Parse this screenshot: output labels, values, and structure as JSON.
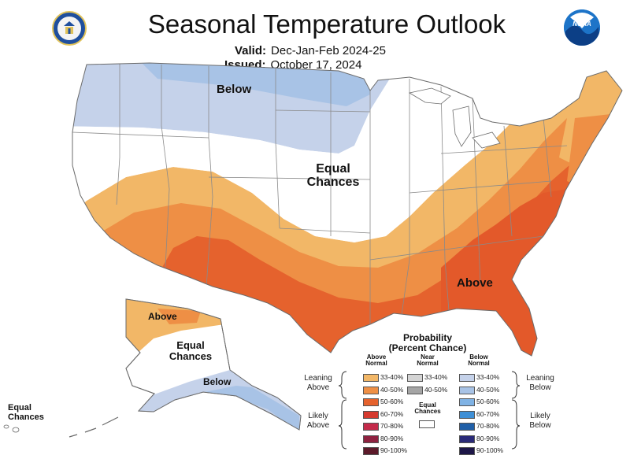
{
  "header": {
    "title": "Seasonal Temperature Outlook",
    "valid_label": "Valid:",
    "valid_value": "Dec-Jan-Feb 2024-25",
    "issued_label": "Issued:",
    "issued_value": "October 17, 2024"
  },
  "logos": {
    "left": "department-of-commerce-seal",
    "right_text": "NOAA"
  },
  "map_labels": {
    "below_north": "Below",
    "equal_center_line1": "Equal",
    "equal_center_line2": "Chances",
    "above_southeast": "Above",
    "alaska_above": "Above",
    "alaska_equal_line1": "Equal",
    "alaska_equal_line2": "Chances",
    "alaska_below": "Below",
    "hawaii_equal_line1": "Equal",
    "hawaii_equal_line2": "Chances"
  },
  "legend": {
    "title_line1": "Probability",
    "title_line2": "(Percent Chance)",
    "above_header_line1": "Above",
    "above_header_line2": "Normal",
    "near_header_line1": "Near",
    "near_header_line2": "Normal",
    "below_header_line1": "Below",
    "below_header_line2": "Normal",
    "above_rows": [
      {
        "range": "33-40%",
        "color": "#f2b767"
      },
      {
        "range": "40-50%",
        "color": "#ee8f45"
      },
      {
        "range": "50-60%",
        "color": "#e5622d"
      },
      {
        "range": "60-70%",
        "color": "#d63a2f"
      },
      {
        "range": "70-80%",
        "color": "#c42a4a"
      },
      {
        "range": "80-90%",
        "color": "#8e2240"
      },
      {
        "range": "90-100%",
        "color": "#5c1a2a"
      }
    ],
    "near_rows": [
      {
        "range": "33-40%",
        "color": "#d4d4d4"
      },
      {
        "range": "40-50%",
        "color": "#a5a5a5"
      }
    ],
    "below_rows": [
      {
        "range": "33-40%",
        "color": "#c5d2ea"
      },
      {
        "range": "40-50%",
        "color": "#a8c3e6"
      },
      {
        "range": "50-60%",
        "color": "#7fb2e4"
      },
      {
        "range": "60-70%",
        "color": "#3d8fd6"
      },
      {
        "range": "70-80%",
        "color": "#1f5fa8"
      },
      {
        "range": "80-90%",
        "color": "#2a2a78"
      },
      {
        "range": "90-100%",
        "color": "#1d1648"
      }
    ],
    "equal_chances_line1": "Equal",
    "equal_chances_line2": "Chances",
    "equal_chances_color": "#ffffff",
    "leaning_above_line1": "Leaning",
    "leaning_above_line2": "Above",
    "likely_above_line1": "Likely",
    "likely_above_line2": "Above",
    "leaning_below_line1": "Leaning",
    "leaning_below_line2": "Below",
    "likely_below_line1": "Likely",
    "likely_below_line2": "Below"
  }
}
